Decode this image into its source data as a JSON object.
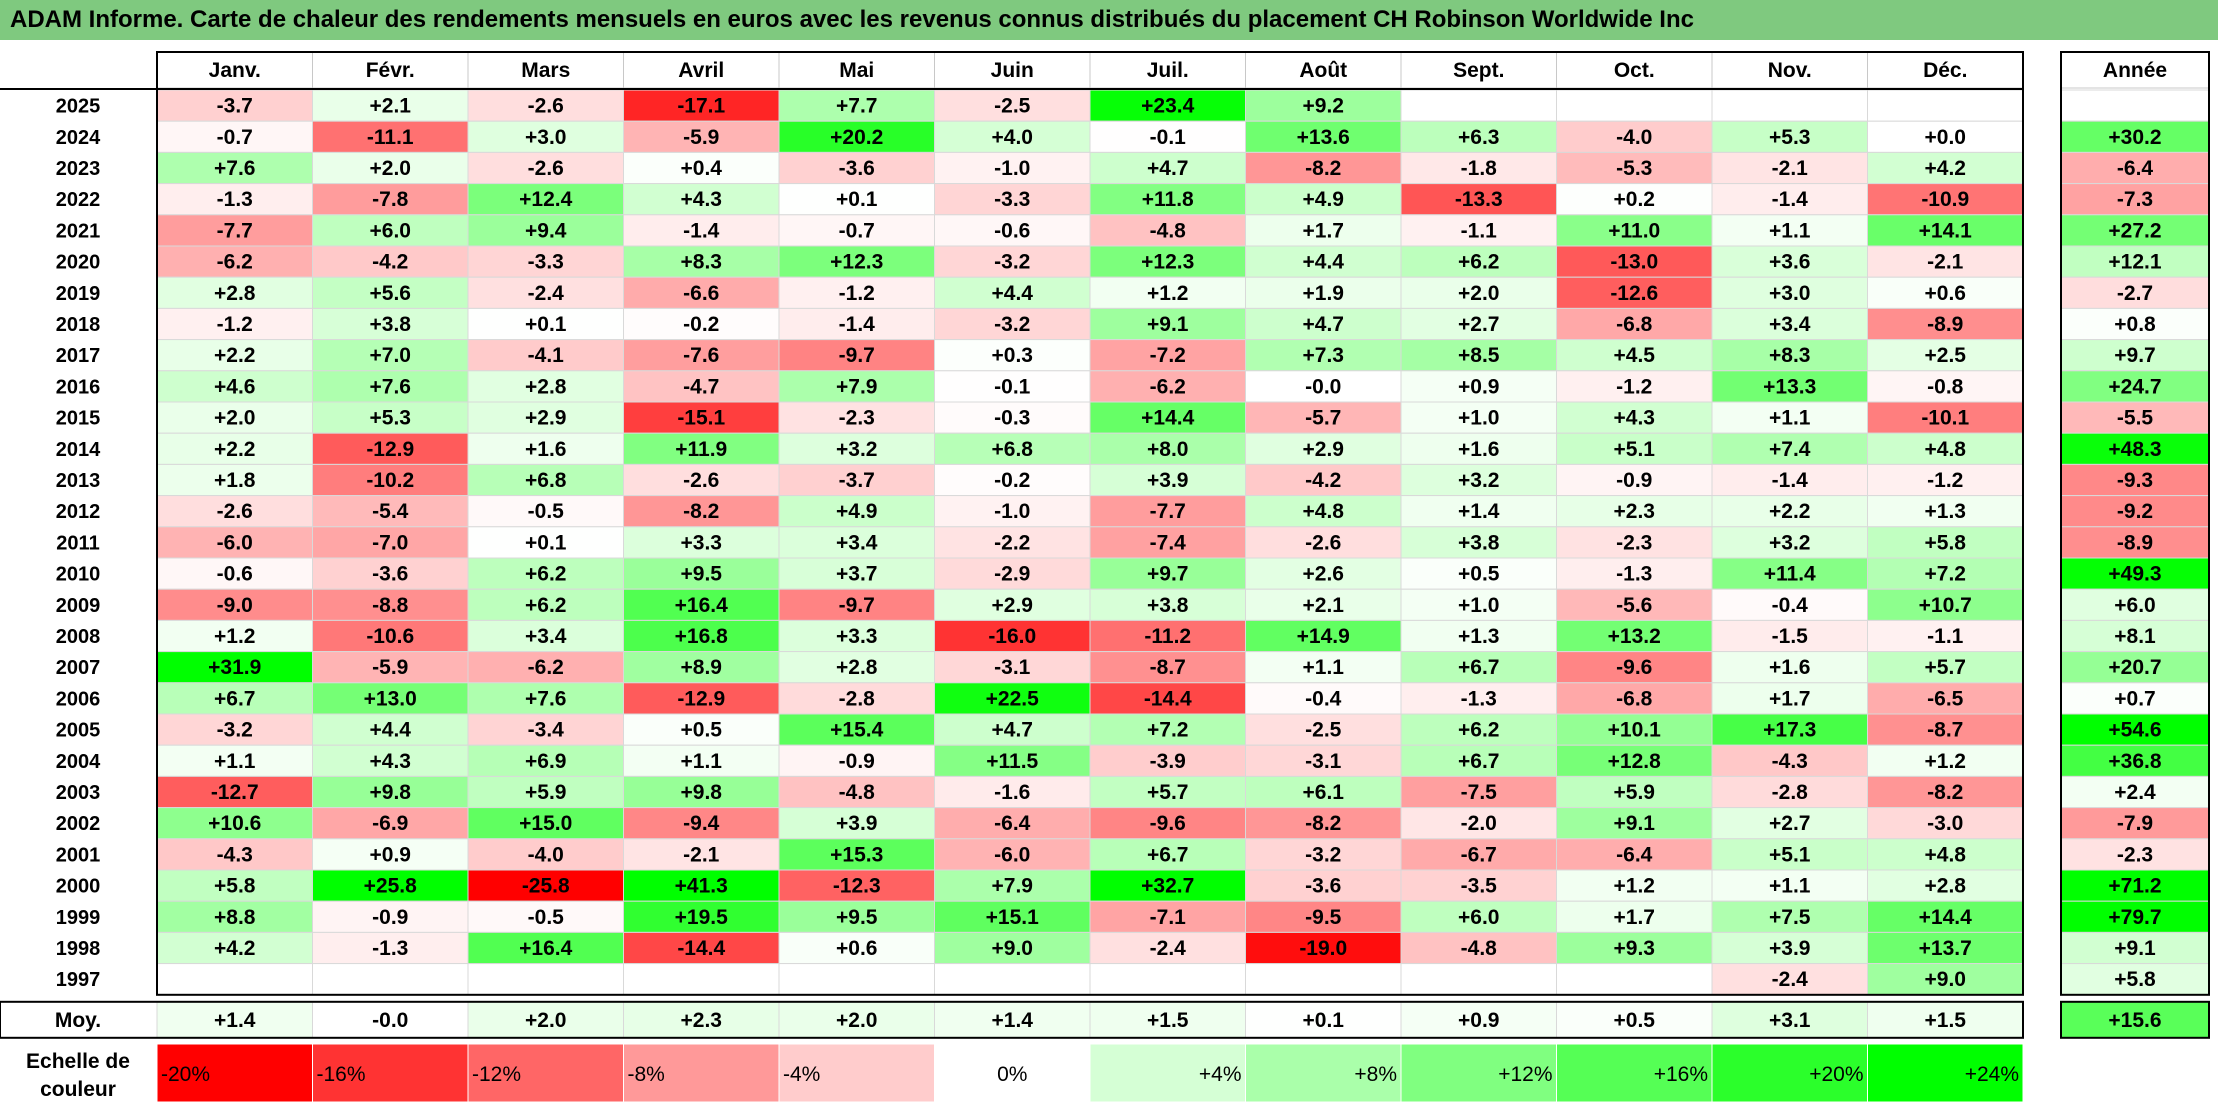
{
  "title": "ADAM Informe. Carte de chaleur des rendements mensuels en euros avec les revenus connus distribués du placement CH Robinson Worldwide Inc",
  "chart_data": {
    "type": "heatmap",
    "columns": [
      "Janv.",
      "Févr.",
      "Mars",
      "Avril",
      "Mai",
      "Juin",
      "Juil.",
      "Août",
      "Sept.",
      "Oct.",
      "Nov.",
      "Déc."
    ],
    "annual_header": "Année",
    "rows": [
      {
        "year": "2025",
        "values": [
          -3.7,
          2.1,
          -2.6,
          -17.1,
          7.7,
          -2.5,
          23.4,
          9.2,
          null,
          null,
          null,
          null
        ],
        "annual": null
      },
      {
        "year": "2024",
        "values": [
          -0.7,
          -11.1,
          3.0,
          -5.9,
          20.2,
          4.0,
          -0.1,
          13.6,
          6.3,
          -4.0,
          5.3,
          0.0
        ],
        "annual": 30.2
      },
      {
        "year": "2023",
        "values": [
          7.6,
          2.0,
          -2.6,
          0.4,
          -3.6,
          -1.0,
          4.7,
          -8.2,
          -1.8,
          -5.3,
          -2.1,
          4.2
        ],
        "annual": -6.4
      },
      {
        "year": "2022",
        "values": [
          -1.3,
          -7.8,
          12.4,
          4.3,
          0.1,
          -3.3,
          11.8,
          4.9,
          -13.3,
          0.2,
          -1.4,
          -10.9
        ],
        "annual": -7.3
      },
      {
        "year": "2021",
        "values": [
          -7.7,
          6.0,
          9.4,
          -1.4,
          -0.7,
          -0.6,
          -4.8,
          1.7,
          -1.1,
          11.0,
          1.1,
          14.1
        ],
        "annual": 27.2
      },
      {
        "year": "2020",
        "values": [
          -6.2,
          -4.2,
          -3.3,
          8.3,
          12.3,
          -3.2,
          12.3,
          4.4,
          6.2,
          -13.0,
          3.6,
          -2.1
        ],
        "annual": 12.1
      },
      {
        "year": "2019",
        "values": [
          2.8,
          5.6,
          -2.4,
          -6.6,
          -1.2,
          4.4,
          1.2,
          1.9,
          2.0,
          -12.6,
          3.0,
          0.6
        ],
        "annual": -2.7
      },
      {
        "year": "2018",
        "values": [
          -1.2,
          3.8,
          0.1,
          -0.2,
          -1.4,
          -3.2,
          9.1,
          4.7,
          2.7,
          -6.8,
          3.4,
          -8.9
        ],
        "annual": 0.8
      },
      {
        "year": "2017",
        "values": [
          2.2,
          7.0,
          -4.1,
          -7.6,
          -9.7,
          0.3,
          -7.2,
          7.3,
          8.5,
          4.5,
          8.3,
          2.5
        ],
        "annual": 9.7
      },
      {
        "year": "2016",
        "values": [
          4.6,
          7.6,
          2.8,
          -4.7,
          7.9,
          -0.1,
          -6.2,
          -0.0,
          0.9,
          -1.2,
          13.3,
          -0.8
        ],
        "annual": 24.7
      },
      {
        "year": "2015",
        "values": [
          2.0,
          5.3,
          2.9,
          -15.1,
          -2.3,
          -0.3,
          14.4,
          -5.7,
          1.0,
          4.3,
          1.1,
          -10.1
        ],
        "annual": -5.5
      },
      {
        "year": "2014",
        "values": [
          2.2,
          -12.9,
          1.6,
          11.9,
          3.2,
          6.8,
          8.0,
          2.9,
          1.6,
          5.1,
          7.4,
          4.8
        ],
        "annual": 48.3
      },
      {
        "year": "2013",
        "values": [
          1.8,
          -10.2,
          6.8,
          -2.6,
          -3.7,
          -0.2,
          3.9,
          -4.2,
          3.2,
          -0.9,
          -1.4,
          -1.2
        ],
        "annual": -9.3
      },
      {
        "year": "2012",
        "values": [
          -2.6,
          -5.4,
          -0.5,
          -8.2,
          4.9,
          -1.0,
          -7.7,
          4.8,
          1.4,
          2.3,
          2.2,
          1.3
        ],
        "annual": -9.2
      },
      {
        "year": "2011",
        "values": [
          -6.0,
          -7.0,
          0.1,
          3.3,
          3.4,
          -2.2,
          -7.4,
          -2.6,
          3.8,
          -2.3,
          3.2,
          5.8
        ],
        "annual": -8.9
      },
      {
        "year": "2010",
        "values": [
          -0.6,
          -3.6,
          6.2,
          9.5,
          3.7,
          -2.9,
          9.7,
          2.6,
          0.5,
          -1.3,
          11.4,
          7.2
        ],
        "annual": 49.3
      },
      {
        "year": "2009",
        "values": [
          -9.0,
          -8.8,
          6.2,
          16.4,
          -9.7,
          2.9,
          3.8,
          2.1,
          1.0,
          -5.6,
          -0.4,
          10.7
        ],
        "annual": 6.0
      },
      {
        "year": "2008",
        "values": [
          1.2,
          -10.6,
          3.4,
          16.8,
          3.3,
          -16.0,
          -11.2,
          14.9,
          1.3,
          13.2,
          -1.5,
          -1.1
        ],
        "annual": 8.1
      },
      {
        "year": "2007",
        "values": [
          31.9,
          -5.9,
          -6.2,
          8.9,
          2.8,
          -3.1,
          -8.7,
          1.1,
          6.7,
          -9.6,
          1.6,
          5.7
        ],
        "annual": 20.7
      },
      {
        "year": "2006",
        "values": [
          6.7,
          13.0,
          7.6,
          -12.9,
          -2.8,
          22.5,
          -14.4,
          -0.4,
          -1.3,
          -6.8,
          1.7,
          -6.5
        ],
        "annual": 0.7
      },
      {
        "year": "2005",
        "values": [
          -3.2,
          4.4,
          -3.4,
          0.5,
          15.4,
          4.7,
          7.2,
          -2.5,
          6.2,
          10.1,
          17.3,
          -8.7
        ],
        "annual": 54.6
      },
      {
        "year": "2004",
        "values": [
          1.1,
          4.3,
          6.9,
          1.1,
          -0.9,
          11.5,
          -3.9,
          -3.1,
          6.7,
          12.8,
          -4.3,
          1.2
        ],
        "annual": 36.8
      },
      {
        "year": "2003",
        "values": [
          -12.7,
          9.8,
          5.9,
          9.8,
          -4.8,
          -1.6,
          5.7,
          6.1,
          -7.5,
          5.9,
          -2.8,
          -8.2
        ],
        "annual": 2.4
      },
      {
        "year": "2002",
        "values": [
          10.6,
          -6.9,
          15.0,
          -9.4,
          3.9,
          -6.4,
          -9.6,
          -8.2,
          -2.0,
          9.1,
          2.7,
          -3.0
        ],
        "annual": -7.9
      },
      {
        "year": "2001",
        "values": [
          -4.3,
          0.9,
          -4.0,
          -2.1,
          15.3,
          -6.0,
          6.7,
          -3.2,
          -6.7,
          -6.4,
          5.1,
          4.8
        ],
        "annual": -2.3
      },
      {
        "year": "2000",
        "values": [
          5.8,
          25.8,
          -25.8,
          41.3,
          -12.3,
          7.9,
          32.7,
          -3.6,
          -3.5,
          1.2,
          1.1,
          2.8
        ],
        "annual": 71.2
      },
      {
        "year": "1999",
        "values": [
          8.8,
          -0.9,
          -0.5,
          19.5,
          9.5,
          15.1,
          -7.1,
          -9.5,
          6.0,
          1.7,
          7.5,
          14.4
        ],
        "annual": 79.7
      },
      {
        "year": "1998",
        "values": [
          4.2,
          -1.3,
          16.4,
          -14.4,
          0.6,
          9.0,
          -2.4,
          -19.0,
          -4.8,
          9.3,
          3.9,
          13.7
        ],
        "annual": 9.1
      },
      {
        "year": "1997",
        "values": [
          null,
          null,
          null,
          null,
          null,
          null,
          null,
          null,
          null,
          null,
          -2.4,
          9.0
        ],
        "annual": 5.8
      }
    ],
    "average": {
      "label": "Moy.",
      "values": [
        1.4,
        -0.0,
        2.0,
        2.3,
        2.0,
        1.4,
        1.5,
        0.1,
        0.9,
        0.5,
        3.1,
        1.5
      ],
      "annual": 15.6
    },
    "color_scale": {
      "label": "Echelle de couleur",
      "stops": [
        -20,
        -16,
        -12,
        -8,
        -4,
        0,
        4,
        8,
        12,
        16,
        20,
        24
      ],
      "labels": [
        "-20%",
        "-16%",
        "-12%",
        "-8%",
        "-4%",
        "0%",
        "+4%",
        "+8%",
        "+12%",
        "+16%",
        "+20%",
        "+24%"
      ],
      "negative_color": "#ff0000",
      "neutral_color": "#ffffff",
      "positive_color": "#00ff00"
    }
  }
}
